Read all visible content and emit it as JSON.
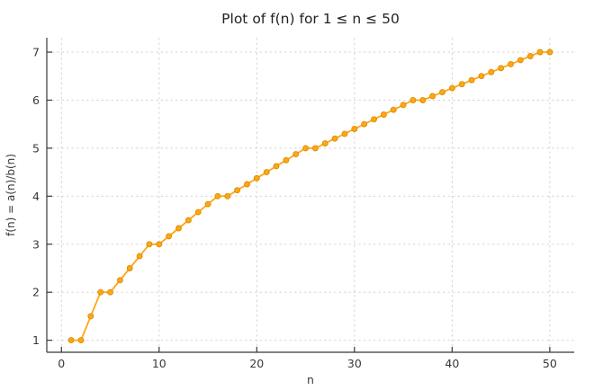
{
  "figure": {
    "background": "#ffffff"
  },
  "chart_data": {
    "type": "line",
    "title": "Plot of f(n) for 1 ≤ n ≤ 50",
    "xlabel": "n",
    "ylabel": "f(n) = a(n)/b(n)",
    "series_name": "f(n)",
    "x": [
      1,
      2,
      3,
      4,
      5,
      6,
      7,
      8,
      9,
      10,
      11,
      12,
      13,
      14,
      15,
      16,
      17,
      18,
      19,
      20,
      21,
      22,
      23,
      24,
      25,
      26,
      27,
      28,
      29,
      30,
      31,
      32,
      33,
      34,
      35,
      36,
      37,
      38,
      39,
      40,
      41,
      42,
      43,
      44,
      45,
      46,
      47,
      48,
      49,
      50
    ],
    "y": [
      1,
      1,
      1.5,
      2,
      2,
      2.25,
      2.5,
      2.75,
      3,
      3,
      3.1667,
      3.3333,
      3.5,
      3.6667,
      3.8333,
      4,
      4,
      4.125,
      4.25,
      4.375,
      4.5,
      4.625,
      4.75,
      4.875,
      5,
      5,
      5.1,
      5.2,
      5.3,
      5.4,
      5.5,
      5.6,
      5.7,
      5.8,
      5.9,
      6,
      6,
      6.0833,
      6.1667,
      6.25,
      6.3333,
      6.4167,
      6.5,
      6.5833,
      6.6667,
      6.75,
      6.8333,
      6.9167,
      7,
      7
    ],
    "xlim": [
      -1.5,
      52.5
    ],
    "ylim": [
      0.75,
      7.3
    ],
    "xticks": [
      0,
      10,
      20,
      30,
      40,
      50
    ],
    "yticks": [
      1,
      2,
      3,
      4,
      5,
      6,
      7
    ],
    "grid": true,
    "legend": "none",
    "line_color": "#FFA616",
    "marker_stroke": "#D98F00",
    "axis_color": "#383838",
    "grid_color": "#d0d0d0"
  }
}
